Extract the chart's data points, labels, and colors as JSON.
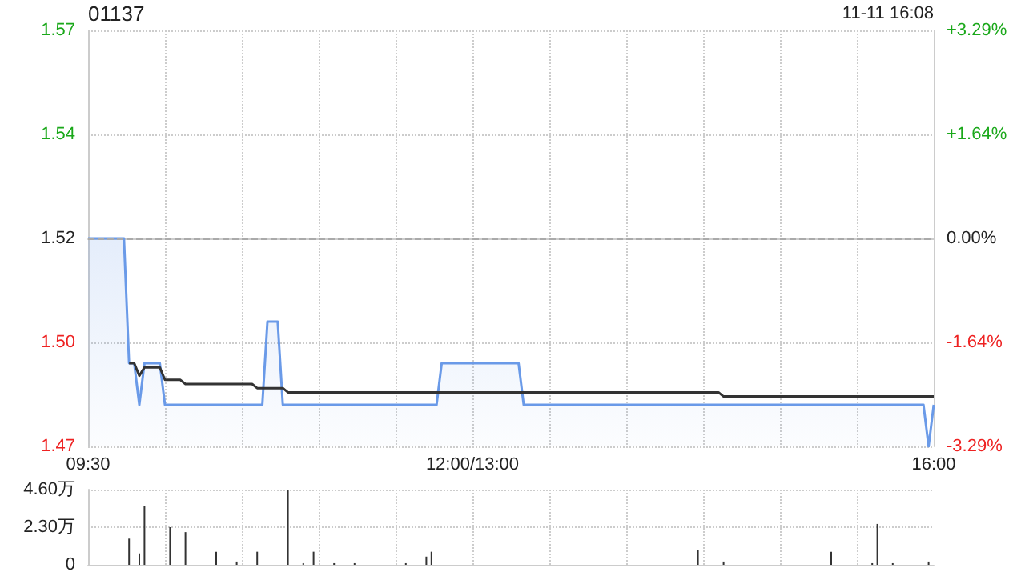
{
  "chart_data": [
    {
      "type": "area",
      "title": "01137",
      "annotations": [
        "11-11 16:08"
      ],
      "categories": [
        "09:30",
        null,
        null,
        null,
        null,
        null,
        null,
        null,
        null,
        null,
        null,
        null,
        null,
        null,
        null,
        null,
        null,
        null,
        null,
        null,
        null,
        null,
        null,
        null,
        null,
        null,
        null,
        null,
        null,
        null,
        null,
        null,
        null,
        null,
        null,
        null,
        null,
        null,
        null,
        null,
        null,
        null,
        null,
        null,
        null,
        null,
        null,
        null,
        null,
        null,
        null,
        null,
        null,
        null,
        null,
        null,
        null,
        null,
        null,
        null,
        null,
        null,
        null,
        null,
        null,
        null,
        null,
        null,
        null,
        null,
        null,
        null,
        null,
        null,
        null,
        "12:00/13:00",
        null,
        null,
        null,
        null,
        null,
        null,
        null,
        null,
        null,
        null,
        null,
        null,
        null,
        null,
        null,
        null,
        null,
        null,
        null,
        null,
        null,
        null,
        null,
        null,
        null,
        null,
        null,
        null,
        null,
        null,
        null,
        null,
        null,
        null,
        null,
        null,
        null,
        null,
        null,
        null,
        null,
        null,
        null,
        null,
        null,
        null,
        null,
        null,
        null,
        null,
        null,
        null,
        null,
        null,
        null,
        null,
        null,
        null,
        null,
        null,
        null,
        null,
        null,
        null,
        null,
        null,
        null,
        null,
        null,
        null,
        null,
        null,
        null,
        null,
        null,
        null,
        null,
        null,
        null,
        null,
        null,
        null,
        null,
        null,
        null,
        null,
        null,
        null,
        null,
        "16:00"
      ],
      "ylim": [
        1.47,
        1.57
      ],
      "yticks": [
        1.47,
        {
          "value": 1.495,
          "label": "1.50"
        },
        1.52,
        {
          "value": 1.545,
          "label": "1.54"
        },
        1.57
      ],
      "y2lim": [
        -3.29,
        3.29
      ],
      "y2ticks": [
        {
          "value": -3.29,
          "label": "-3.29%"
        },
        {
          "value": -1.64,
          "label": "-1.64%"
        },
        {
          "value": 0,
          "label": "0.00%"
        },
        {
          "value": 1.64,
          "label": "+1.64%"
        },
        {
          "value": 3.29,
          "label": "+3.29%"
        }
      ],
      "grid": true,
      "marker": "none",
      "ref_lines": [
        {
          "axis": "y",
          "value": 1.52,
          "color": "#aaaaaa",
          "line_style": "dashed"
        }
      ],
      "series": [
        {
          "type": "area",
          "color": "#6a9ae8",
          "values": [
            1.52,
            1.52,
            1.52,
            1.52,
            1.52,
            1.52,
            1.52,
            1.52,
            1.49,
            1.49,
            1.48,
            1.49,
            1.49,
            1.49,
            1.49,
            1.48,
            1.48,
            1.48,
            1.48,
            1.48,
            1.48,
            1.48,
            1.48,
            1.48,
            1.48,
            1.48,
            1.48,
            1.48,
            1.48,
            1.48,
            1.48,
            1.48,
            1.48,
            1.48,
            1.48,
            1.5,
            1.5,
            1.5,
            1.48,
            1.48,
            1.48,
            1.48,
            1.48,
            1.48,
            1.48,
            1.48,
            1.48,
            1.48,
            1.48,
            1.48,
            1.48,
            1.48,
            1.48,
            1.48,
            1.48,
            1.48,
            1.48,
            1.48,
            1.48,
            1.48,
            1.48,
            1.48,
            1.48,
            1.48,
            1.48,
            1.48,
            1.48,
            1.48,
            1.48,
            1.49,
            1.49,
            1.49,
            1.49,
            1.49,
            1.49,
            1.49,
            1.49,
            1.49,
            1.49,
            1.49,
            1.49,
            1.49,
            1.49,
            1.49,
            1.49,
            1.48,
            1.48,
            1.48,
            1.48,
            1.48,
            1.48,
            1.48,
            1.48,
            1.48,
            1.48,
            1.48,
            1.48,
            1.48,
            1.48,
            1.48,
            1.48,
            1.48,
            1.48,
            1.48,
            1.48,
            1.48,
            1.48,
            1.48,
            1.48,
            1.48,
            1.48,
            1.48,
            1.48,
            1.48,
            1.48,
            1.48,
            1.48,
            1.48,
            1.48,
            1.48,
            1.48,
            1.48,
            1.48,
            1.48,
            1.48,
            1.48,
            1.48,
            1.48,
            1.48,
            1.48,
            1.48,
            1.48,
            1.48,
            1.48,
            1.48,
            1.48,
            1.48,
            1.48,
            1.48,
            1.48,
            1.48,
            1.48,
            1.48,
            1.48,
            1.48,
            1.48,
            1.48,
            1.48,
            1.48,
            1.48,
            1.48,
            1.48,
            1.48,
            1.48,
            1.48,
            1.48,
            1.48,
            1.48,
            1.48,
            1.48,
            1.48,
            1.48,
            1.48,
            1.48,
            1.47,
            1.48
          ]
        },
        {
          "type": "line",
          "color": "#333333",
          "values": [
            null,
            null,
            null,
            null,
            null,
            null,
            null,
            null,
            1.49,
            1.49,
            1.487,
            1.489,
            1.489,
            1.489,
            1.489,
            1.486,
            1.486,
            1.486,
            1.486,
            1.485,
            1.485,
            1.485,
            1.485,
            1.485,
            1.485,
            1.485,
            1.485,
            1.485,
            1.485,
            1.485,
            1.485,
            1.485,
            1.485,
            1.484,
            1.484,
            1.484,
            1.484,
            1.484,
            1.484,
            1.483,
            1.483,
            1.483,
            1.483,
            1.483,
            1.483,
            1.483,
            1.483,
            1.483,
            1.483,
            1.483,
            1.483,
            1.483,
            1.483,
            1.483,
            1.483,
            1.483,
            1.483,
            1.483,
            1.483,
            1.483,
            1.483,
            1.483,
            1.483,
            1.483,
            1.483,
            1.483,
            1.483,
            1.483,
            1.483,
            1.483,
            1.483,
            1.483,
            1.483,
            1.483,
            1.483,
            1.483,
            1.483,
            1.483,
            1.483,
            1.483,
            1.483,
            1.483,
            1.483,
            1.483,
            1.483,
            1.483,
            1.483,
            1.483,
            1.483,
            1.483,
            1.483,
            1.483,
            1.483,
            1.483,
            1.483,
            1.483,
            1.483,
            1.483,
            1.483,
            1.483,
            1.483,
            1.483,
            1.483,
            1.483,
            1.483,
            1.483,
            1.483,
            1.483,
            1.483,
            1.483,
            1.483,
            1.483,
            1.483,
            1.483,
            1.483,
            1.483,
            1.483,
            1.483,
            1.483,
            1.483,
            1.483,
            1.483,
            1.483,
            1.483,
            1.482,
            1.482,
            1.482,
            1.482,
            1.482,
            1.482,
            1.482,
            1.482,
            1.482,
            1.482,
            1.482,
            1.482,
            1.482,
            1.482,
            1.482,
            1.482,
            1.482,
            1.482,
            1.482,
            1.482,
            1.482,
            1.482,
            1.482,
            1.482,
            1.482,
            1.482,
            1.482,
            1.482,
            1.482,
            1.482,
            1.482,
            1.482,
            1.482,
            1.482,
            1.482,
            1.482,
            1.482,
            1.482,
            1.482,
            1.482,
            1.482,
            1.482
          ]
        }
      ]
    },
    {
      "type": "bar",
      "tick_labels": "y",
      "grid": true,
      "categories": [
        null,
        null,
        null,
        null,
        null,
        null,
        null,
        null,
        null,
        null,
        null,
        null,
        null,
        null,
        null,
        null,
        null,
        null,
        null,
        null,
        null,
        null,
        null,
        null,
        null,
        null,
        null,
        null,
        null,
        null,
        null,
        null,
        null,
        null,
        null,
        null,
        null,
        null,
        null,
        null,
        null,
        null,
        null,
        null,
        null,
        null,
        null,
        null,
        null,
        null,
        null,
        null,
        null,
        null,
        null,
        null,
        null,
        null,
        null,
        null,
        null,
        null,
        null,
        null,
        null,
        null,
        null,
        null,
        null,
        null,
        null,
        null,
        null,
        null,
        null,
        null,
        null,
        null,
        null,
        null,
        null,
        null,
        null,
        null,
        null,
        null,
        null,
        null,
        null,
        null,
        null,
        null,
        null,
        null,
        null,
        null,
        null,
        null,
        null,
        null,
        null,
        null,
        null,
        null,
        null,
        null,
        null,
        null,
        null,
        null,
        null,
        null,
        null,
        null,
        null,
        null,
        null,
        null,
        null,
        null,
        null,
        null,
        null,
        null,
        null,
        null,
        null,
        null,
        null,
        null,
        null,
        null,
        null,
        null,
        null,
        null,
        null,
        null,
        null,
        null,
        null,
        null,
        null,
        null,
        null,
        null,
        null,
        null,
        null,
        null,
        null,
        null,
        null,
        null,
        null,
        null,
        null,
        null,
        null,
        null,
        null,
        null,
        null,
        null,
        null,
        null
      ],
      "ylim": [
        0,
        4.6
      ],
      "yticks": [
        0,
        {
          "value": 2.3,
          "label": "2.30万"
        },
        {
          "value": 4.6,
          "label": "4.60万"
        }
      ],
      "color": "#333333",
      "values": [
        null,
        null,
        null,
        null,
        null,
        null,
        null,
        null,
        1.6,
        null,
        0.7,
        3.6,
        null,
        null,
        null,
        null,
        2.3,
        null,
        null,
        2.0,
        null,
        null,
        null,
        null,
        null,
        0.8,
        null,
        null,
        null,
        0.2,
        null,
        null,
        null,
        0.8,
        null,
        null,
        null,
        null,
        null,
        4.6,
        null,
        null,
        0.1,
        null,
        0.8,
        null,
        null,
        null,
        0.1,
        null,
        null,
        null,
        0.1,
        null,
        null,
        null,
        null,
        null,
        null,
        null,
        null,
        null,
        0.1,
        null,
        null,
        null,
        0.5,
        0.8,
        null,
        null,
        null,
        null,
        null,
        null,
        null,
        null,
        null,
        null,
        null,
        null,
        null,
        null,
        null,
        null,
        null,
        null,
        null,
        null,
        null,
        null,
        null,
        null,
        null,
        null,
        null,
        null,
        null,
        null,
        null,
        null,
        null,
        null,
        null,
        null,
        null,
        null,
        null,
        null,
        null,
        null,
        null,
        null,
        null,
        null,
        null,
        null,
        null,
        null,
        null,
        0.9,
        null,
        null,
        null,
        null,
        0.2,
        null,
        null,
        null,
        null,
        null,
        null,
        null,
        null,
        null,
        null,
        null,
        null,
        null,
        null,
        null,
        null,
        null,
        null,
        null,
        null,
        0.8,
        null,
        null,
        null,
        null,
        null,
        null,
        null,
        0.1,
        2.5,
        null,
        null,
        0.1,
        null,
        null,
        null,
        null,
        null,
        null,
        0.2,
        null
      ]
    }
  ]
}
